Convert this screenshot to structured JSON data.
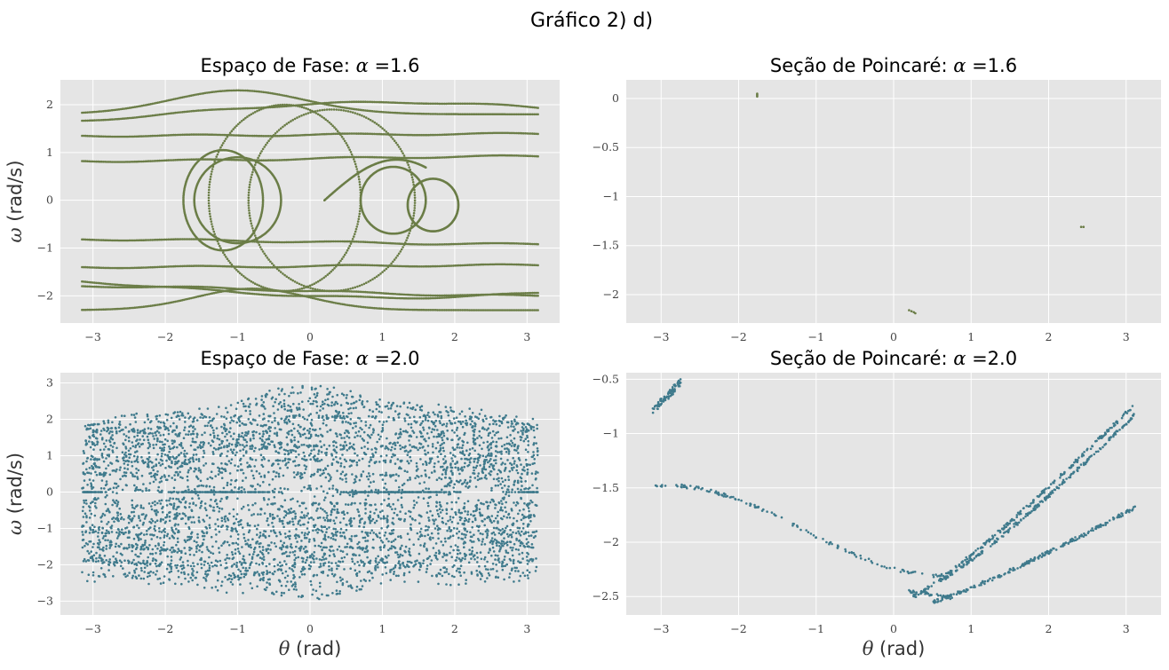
{
  "suptitle": "Gráfico 2) d)",
  "colors": {
    "alpha16": "#6b7d47",
    "alpha20": "#3f7a8c",
    "panel_bg": "#e5e5e5",
    "grid": "#ffffff"
  },
  "chart_data": [
    {
      "type": "scatter",
      "title_prefix": "Espaço de Fase: ",
      "title_symbol": "α",
      "title_value": "=1.6",
      "xlabel": "",
      "ylabel_symbol": "ω",
      "ylabel": " (rad/s)",
      "xlim": [
        -3.45,
        3.45
      ],
      "ylim": [
        -2.57,
        2.52
      ],
      "xticks": [
        -3,
        -2,
        -1,
        0,
        1,
        2,
        3
      ],
      "yticks": [
        -2,
        -1,
        0,
        1,
        2
      ],
      "grid": true,
      "color": "alpha16",
      "series_kind": "phase16"
    },
    {
      "type": "scatter",
      "title_prefix": "Seção de Poincaré: ",
      "title_symbol": "α",
      "title_value": "=1.6",
      "xlabel": "",
      "ylabel": "",
      "xlim": [
        -3.45,
        3.45
      ],
      "ylim": [
        -2.29,
        0.19
      ],
      "xticks": [
        -3,
        -2,
        -1,
        0,
        1,
        2,
        3
      ],
      "yticks": [
        -2.0,
        -1.5,
        -1.0,
        -0.5,
        0.0
      ],
      "grid": true,
      "color": "alpha16",
      "points": [
        [
          -1.76,
          0.05
        ],
        [
          -1.76,
          0.04
        ],
        [
          -1.76,
          0.03
        ],
        [
          -1.76,
          0.02
        ],
        [
          2.42,
          -1.31
        ],
        [
          2.45,
          -1.31
        ],
        [
          0.2,
          -2.16
        ],
        [
          0.23,
          -2.17
        ],
        [
          0.26,
          -2.18
        ],
        [
          0.28,
          -2.19
        ]
      ]
    },
    {
      "type": "scatter",
      "title_prefix": "Espaço de Fase: ",
      "title_symbol": "α",
      "title_value": "=2.0",
      "xlabel_symbol": "θ",
      "xlabel": " (rad)",
      "ylabel_symbol": "ω",
      "ylabel": " (rad/s)",
      "xlim": [
        -3.45,
        3.45
      ],
      "ylim": [
        -3.38,
        3.28
      ],
      "xticks": [
        -3,
        -2,
        -1,
        0,
        1,
        2,
        3
      ],
      "yticks": [
        -3,
        -2,
        -1,
        0,
        1,
        2,
        3
      ],
      "grid": true,
      "color": "alpha20",
      "series_kind": "phase20"
    },
    {
      "type": "scatter",
      "title_prefix": "Seção de Poincaré: ",
      "title_symbol": "α",
      "title_value": "=2.0",
      "xlabel_symbol": "θ",
      "xlabel": " (rad)",
      "ylabel": "",
      "xlim": [
        -3.45,
        3.45
      ],
      "ylim": [
        -2.67,
        -0.44
      ],
      "xticks": [
        -3,
        -2,
        -1,
        0,
        1,
        2,
        3
      ],
      "yticks": [
        -2.5,
        -2.0,
        -1.5,
        -1.0,
        -0.5
      ],
      "grid": true,
      "color": "alpha20",
      "series_kind": "poinc20"
    }
  ]
}
